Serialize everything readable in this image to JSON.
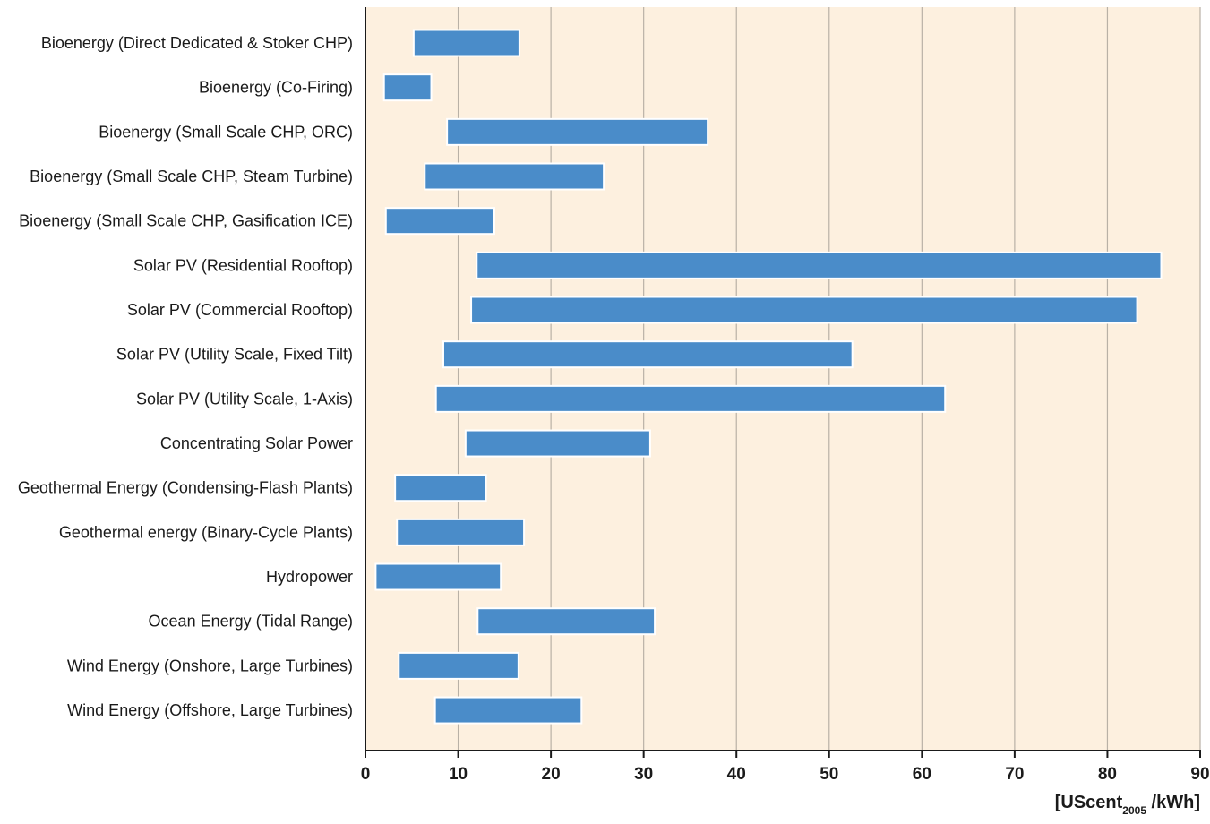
{
  "chart_data": {
    "type": "bar",
    "orientation": "horizontal-range",
    "categories": [
      "Bioenergy (Direct Dedicated & Stoker CHP)",
      "Bioenergy (Co-Firing)",
      "Bioenergy (Small Scale CHP, ORC)",
      "Bioenergy (Small Scale CHP, Steam Turbine)",
      "Bioenergy (Small Scale CHP, Gasification ICE)",
      "Solar PV (Residential Rooftop)",
      "Solar PV (Commercial Rooftop)",
      "Solar PV (Utility Scale, Fixed Tilt)",
      "Solar PV (Utility Scale, 1-Axis)",
      "Concentrating Solar Power",
      "Geothermal Energy (Condensing-Flash Plants)",
      "Geothermal energy (Binary-Cycle Plants)",
      "Hydropower",
      "Ocean Energy (Tidal Range)",
      "Wind Energy (Onshore, Large Turbines)",
      "Wind Energy (Offshore, Large Turbines)"
    ],
    "ranges": [
      [
        5.2,
        16.6
      ],
      [
        2.0,
        7.1
      ],
      [
        8.8,
        36.9
      ],
      [
        6.4,
        25.7
      ],
      [
        2.2,
        13.9
      ],
      [
        12.0,
        85.8
      ],
      [
        11.4,
        83.2
      ],
      [
        8.4,
        52.5
      ],
      [
        7.6,
        62.5
      ],
      [
        10.8,
        30.7
      ],
      [
        3.2,
        13.0
      ],
      [
        3.4,
        17.1
      ],
      [
        1.1,
        14.6
      ],
      [
        12.1,
        31.2
      ],
      [
        3.6,
        16.5
      ],
      [
        7.5,
        23.3
      ]
    ],
    "xlim": [
      0,
      90
    ],
    "xticks": [
      "0",
      "10",
      "20",
      "30",
      "40",
      "50",
      "60",
      "70",
      "80",
      "90"
    ],
    "xlabel_main": "[UScent",
    "xlabel_sub": "2005",
    "xlabel_tail": " /kWh]",
    "grid": "vertical",
    "colors": {
      "bar": "#4a8cc9",
      "bar_edge": "#ffffff",
      "background": "#fdf0df",
      "grid": "#b9b1a6",
      "axis": "#1a1a1a"
    }
  }
}
